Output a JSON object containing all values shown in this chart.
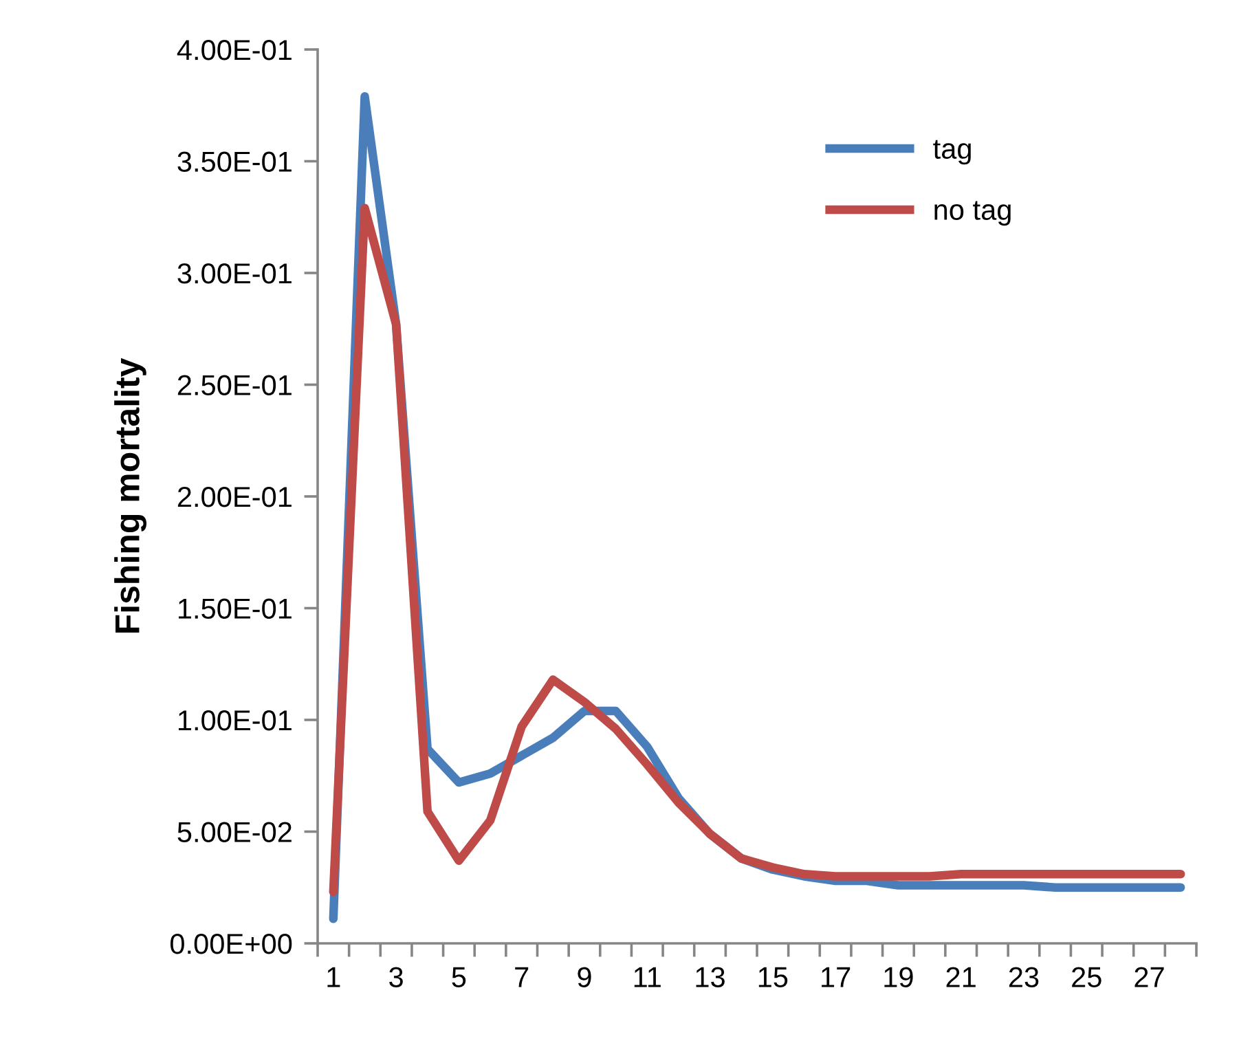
{
  "chart_data": {
    "type": "line",
    "ylabel": "Fishing mortality",
    "categories": [
      "1",
      null,
      "3",
      null,
      "5",
      null,
      "7",
      null,
      "9",
      null,
      "11",
      null,
      "13",
      null,
      "15",
      null,
      "17",
      null,
      "19",
      null,
      "21",
      null,
      "23",
      null,
      "25",
      null,
      "27",
      null
    ],
    "series": [
      {
        "name": "tag",
        "color": "#4a7ebb",
        "values": [
          0.011,
          0.379,
          0.277,
          0.087,
          0.072,
          0.076,
          0.084,
          0.092,
          0.104,
          0.104,
          0.088,
          0.065,
          0.049,
          0.038,
          0.033,
          0.03,
          0.028,
          0.028,
          0.026,
          0.026,
          0.026,
          0.026,
          0.026,
          0.025,
          0.025,
          0.025,
          0.025,
          0.025
        ]
      },
      {
        "name": "no tag",
        "color": "#be4b48",
        "values": [
          0.023,
          0.329,
          0.277,
          0.059,
          0.037,
          0.055,
          0.097,
          0.118,
          0.108,
          0.096,
          0.08,
          0.063,
          0.049,
          0.038,
          0.034,
          0.031,
          0.03,
          0.03,
          0.03,
          0.03,
          0.031,
          0.031,
          0.031,
          0.031,
          0.031,
          0.031,
          0.031,
          0.031
        ]
      }
    ],
    "ylim": [
      0,
      0.4
    ],
    "yticks": [
      {
        "value": 0,
        "label": "0.00E+00"
      },
      {
        "value": 0.05,
        "label": "5.00E-02"
      },
      {
        "value": 0.1,
        "label": "1.00E-01"
      },
      {
        "value": 0.15,
        "label": "1.50E-01"
      },
      {
        "value": 0.2,
        "label": "2.00E-01"
      },
      {
        "value": 0.25,
        "label": "2.50E-01"
      },
      {
        "value": 0.3,
        "label": "3.00E-01"
      },
      {
        "value": 0.35,
        "label": "3.50E-01"
      },
      {
        "value": 0.4,
        "label": "4.00E-01"
      }
    ],
    "grid": false,
    "legend": "top right",
    "marker": "none",
    "line_style": "solid"
  }
}
